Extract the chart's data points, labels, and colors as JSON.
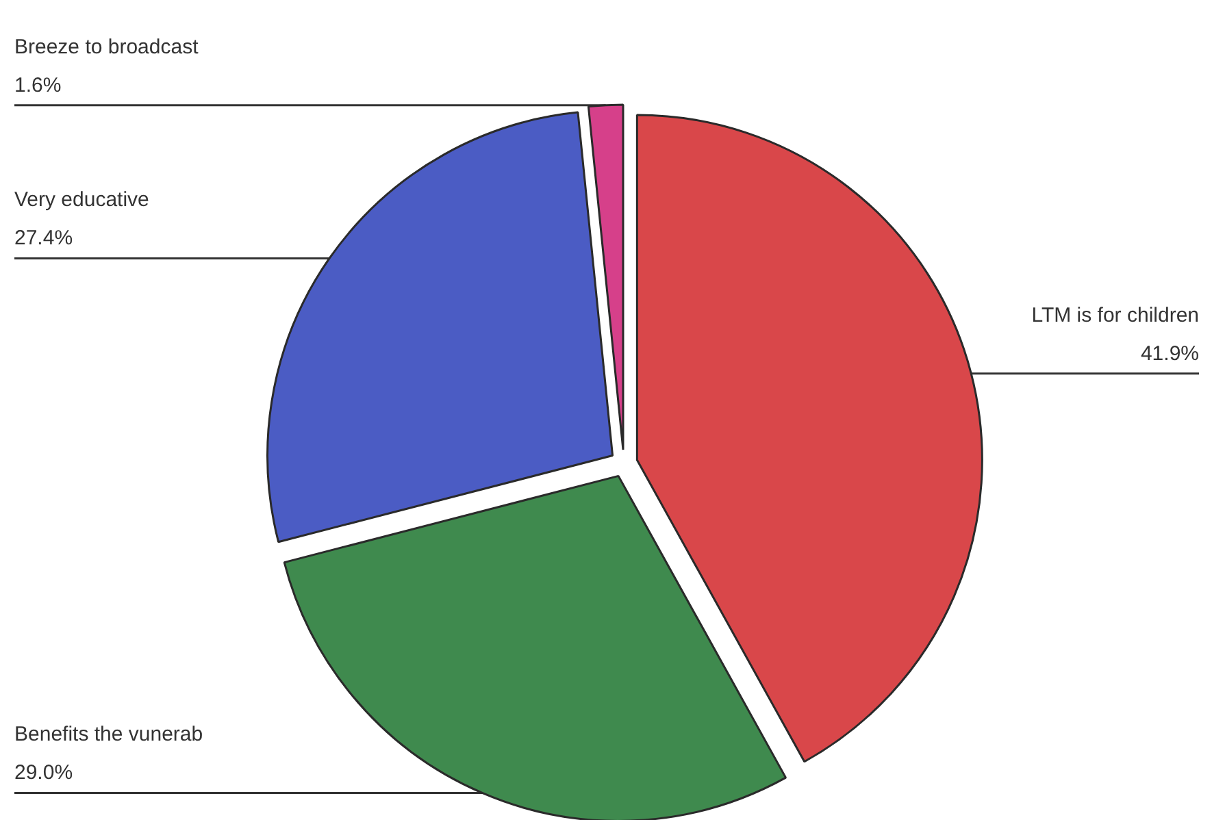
{
  "chart_data": {
    "type": "pie",
    "categories": [
      "LTM is for children",
      "Benefits the vunerab",
      "Very educative",
      "Breeze to broadcast"
    ],
    "values": [
      41.9,
      29.0,
      27.4,
      1.6
    ],
    "value_labels": [
      "41.9%",
      "29.0%",
      "27.4%",
      "1.6%"
    ],
    "colors": [
      "#d9474a",
      "#3f8a4e",
      "#4b5cc4",
      "#d6408a"
    ]
  }
}
